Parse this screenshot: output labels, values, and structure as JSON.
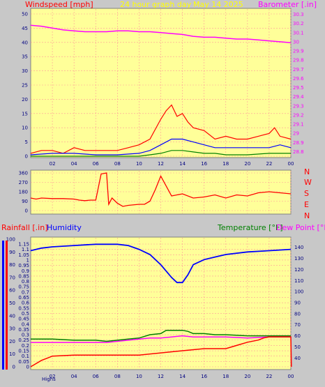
{
  "header": {
    "title": "24 hour graph day",
    "date": "May 14 2025",
    "windspeed_label": "Windspeed [mph]",
    "barometer_label": "Barometer [.in]"
  },
  "direction_letters": [
    "N",
    "W",
    "S",
    "E",
    "N"
  ],
  "bottom_header": {
    "rainfall_label": "Rainfall [.in]",
    "humidity_label": "Humidity",
    "temperature_label": "Temperature [°F]",
    "dewpoint_label": "Dew Point [°F]"
  },
  "footer": {
    "highs_label": "Highs"
  },
  "colors": {
    "panel_bg": "#ffff99",
    "wind": "#ff0000",
    "wind_avg": "#0000ff",
    "wind_low": "#008000",
    "barometer": "#ff00ff",
    "direction": "#ff0000",
    "rain": "#ff0000",
    "humidity": "#0000ff",
    "temperature": "#008000",
    "dewpoint": "#ff00ff",
    "title": "#ffff00"
  },
  "chart_data": [
    {
      "id": "wind",
      "type": "line",
      "x_ticks": [
        "02",
        "04",
        "06",
        "08",
        "10",
        "12",
        "14",
        "16",
        "18",
        "20",
        "22",
        "00"
      ],
      "y_left_ticks": [
        "0",
        "5",
        "10",
        "15",
        "20",
        "25",
        "30",
        "35",
        "40",
        "45",
        "50"
      ],
      "y_left_range": [
        0,
        50
      ],
      "y_right_ticks": [
        "28.8",
        "28.9",
        "29",
        "29.1",
        "29.2",
        "29.3",
        "29.4",
        "29.5",
        "29.6",
        "29.7",
        "29.8",
        "29.9",
        "30",
        "30.1",
        "30.2",
        "30.3"
      ],
      "y_right_range": [
        28.75,
        30.35
      ],
      "x_range": [
        0,
        24
      ],
      "grid": true,
      "barometer": {
        "x": [
          0,
          1,
          2,
          3,
          4,
          5,
          6,
          7,
          8,
          9,
          10,
          11,
          12,
          13,
          14,
          15,
          16,
          17,
          18,
          19,
          20,
          21,
          22,
          23,
          24
        ],
        "y": [
          30.18,
          30.17,
          30.15,
          30.13,
          30.12,
          30.11,
          30.11,
          30.11,
          30.12,
          30.12,
          30.11,
          30.11,
          30.1,
          30.09,
          30.08,
          30.06,
          30.05,
          30.05,
          30.04,
          30.03,
          30.03,
          30.02,
          30.01,
          30.0,
          29.99
        ]
      },
      "wind_gust": {
        "x": [
          0,
          1,
          2,
          3,
          4,
          5,
          6,
          7,
          8,
          9,
          10,
          11,
          12,
          12.5,
          13,
          13.5,
          14,
          14.5,
          15,
          16,
          17,
          18,
          19,
          20,
          21,
          22,
          22.5,
          23,
          24
        ],
        "y": [
          1,
          2,
          2,
          1,
          3,
          2,
          2,
          2,
          2,
          3,
          4,
          6,
          13,
          16,
          18,
          14,
          15,
          12,
          10,
          9,
          6,
          7,
          6,
          6,
          7,
          8,
          10,
          7,
          6
        ]
      },
      "wind_avg": {
        "x": [
          0,
          2,
          4,
          6,
          8,
          10,
          11,
          12,
          13,
          14,
          15,
          16,
          17,
          18,
          19,
          20,
          21,
          22,
          23,
          24
        ],
        "y": [
          0.5,
          1,
          1,
          0.5,
          0.5,
          1,
          2,
          4,
          6,
          6,
          5,
          4,
          3,
          3,
          3,
          3,
          3,
          3,
          4,
          3
        ]
      },
      "wind_low": {
        "x": [
          0,
          10,
          11,
          12,
          13,
          14,
          15,
          16,
          17,
          18,
          20,
          22,
          24
        ],
        "y": [
          0,
          0,
          0.5,
          1,
          2,
          2,
          1.5,
          1,
          1,
          0.5,
          0.5,
          1,
          1
        ]
      }
    },
    {
      "id": "direction",
      "type": "line",
      "y_ticks": [
        "360",
        "270",
        "180",
        "90",
        "0"
      ],
      "y_range": [
        0,
        360
      ],
      "x_range": [
        0,
        24
      ],
      "grid": true,
      "series": [
        {
          "name": "Direction",
          "x": [
            0,
            0.5,
            1,
            2,
            3,
            4,
            4.5,
            5,
            5.5,
            6,
            6.5,
            7,
            7.2,
            7.5,
            8,
            8.5,
            9,
            10,
            10.5,
            11,
            11.5,
            12,
            13,
            14,
            15,
            16,
            17,
            18,
            19,
            20,
            21,
            22,
            23,
            24
          ],
          "y": [
            120,
            110,
            120,
            115,
            115,
            110,
            100,
            95,
            100,
            100,
            350,
            360,
            60,
            120,
            70,
            40,
            50,
            60,
            60,
            90,
            200,
            330,
            140,
            160,
            120,
            130,
            150,
            120,
            150,
            140,
            170,
            180,
            170,
            160
          ]
        }
      ]
    },
    {
      "id": "climate",
      "type": "line",
      "x_range": [
        0,
        24
      ],
      "grid": true,
      "y_left_ticks": [
        "0",
        "0.05",
        "0.1",
        "0.15",
        "0.2",
        "0.25",
        "0.3",
        "0.35",
        "0.4",
        "0.45",
        "0.5",
        "0.55",
        "0.6",
        "0.65",
        "0.7",
        "0.75",
        "0.8",
        "0.85",
        "0.9",
        "0.95",
        "1",
        "1.05",
        "1.1",
        "1.15"
      ],
      "y_left_range": [
        0,
        1.15
      ],
      "y_humidity_ticks": [
        "0",
        "10",
        "20",
        "30",
        "40",
        "50",
        "60",
        "70",
        "80",
        "90",
        "100"
      ],
      "y_humidity_range": [
        0,
        100
      ],
      "y_right_ticks": [
        "40",
        "50",
        "60",
        "70",
        "80",
        "90",
        "100",
        "110",
        "120",
        "130",
        "140"
      ],
      "y_right_range": [
        32,
        148
      ],
      "humidity": {
        "x": [
          0,
          1,
          2,
          4,
          6,
          8,
          9,
          10,
          11,
          12,
          12.5,
          13,
          13.5,
          14,
          14.5,
          15,
          16,
          17,
          18,
          20,
          22,
          24
        ],
        "y": [
          91,
          93,
          94,
          95,
          96,
          96,
          95,
          92,
          88,
          80,
          75,
          70,
          66,
          66,
          72,
          80,
          84,
          86,
          88,
          90,
          91,
          92
        ]
      },
      "temperature": {
        "x": [
          0,
          2,
          4,
          6,
          7,
          8,
          9,
          10,
          11,
          12,
          12.5,
          13,
          14,
          14.5,
          15,
          16,
          17,
          18,
          20,
          22,
          24
        ],
        "y": [
          57,
          57,
          56,
          56,
          55,
          56,
          57,
          58,
          61,
          62,
          65,
          65,
          65,
          64,
          62,
          62,
          61,
          61,
          60,
          60,
          60
        ]
      },
      "dewpoint": {
        "x": [
          0,
          2,
          4,
          6,
          7,
          8,
          9,
          10,
          11,
          12,
          13,
          14,
          15,
          16,
          17,
          18,
          20,
          22,
          24
        ],
        "y": [
          54,
          54,
          54,
          54,
          54,
          55,
          56,
          57,
          58,
          58,
          59,
          60,
          59,
          59,
          59,
          59,
          58,
          59,
          59
        ]
      },
      "rainfall": {
        "x": [
          0,
          0.5,
          1,
          1.5,
          2,
          4,
          6,
          8,
          10,
          12,
          14,
          16,
          18,
          19,
          20,
          21,
          21.5,
          22,
          24,
          24.05
        ],
        "y": [
          0,
          0.03,
          0.06,
          0.08,
          0.1,
          0.11,
          0.11,
          0.11,
          0.11,
          0.13,
          0.15,
          0.17,
          0.17,
          0.2,
          0.23,
          0.25,
          0.27,
          0.28,
          0.28,
          0
        ]
      }
    }
  ]
}
